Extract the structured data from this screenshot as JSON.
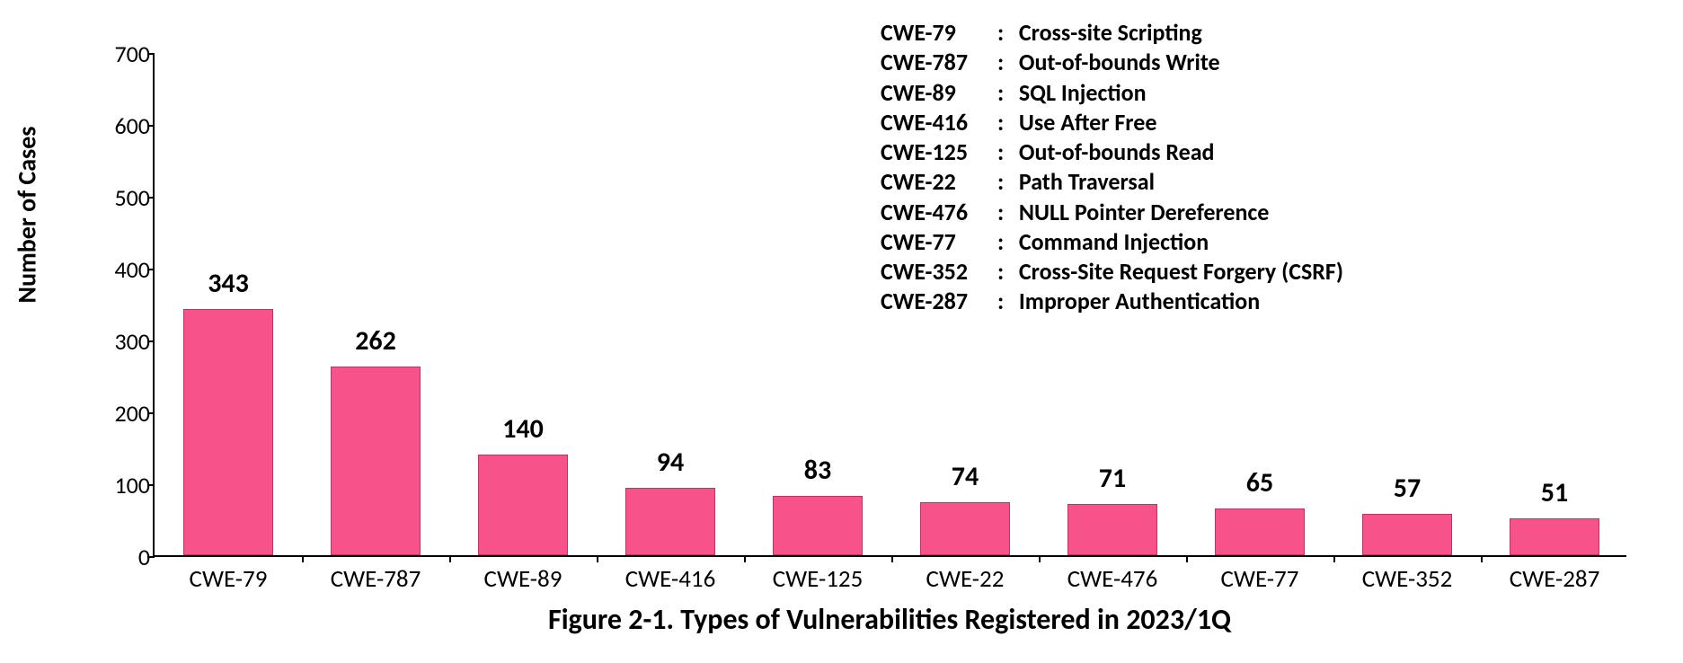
{
  "chart": {
    "type": "bar",
    "y_axis_label": "Number of Cases",
    "caption": "Figure 2-1. Types of Vulnerabilities Registered in 2023/1Q",
    "ylim": [
      0,
      700
    ],
    "ytick_step": 100,
    "yticks": [
      0,
      100,
      200,
      300,
      400,
      500,
      600,
      700
    ],
    "bar_fill_color": "#f7538a",
    "bar_border_color": "#c23066",
    "background_color": "#ffffff",
    "axis_color": "#000000",
    "label_fontsize": 28,
    "value_fontsize": 30,
    "tick_fontsize": 26,
    "caption_fontsize": 32,
    "bars": [
      {
        "category": "CWE-79",
        "value": 343
      },
      {
        "category": "CWE-787",
        "value": 262
      },
      {
        "category": "CWE-89",
        "value": 140
      },
      {
        "category": "CWE-416",
        "value": 94
      },
      {
        "category": "CWE-125",
        "value": 83
      },
      {
        "category": "CWE-22",
        "value": 74
      },
      {
        "category": "CWE-476",
        "value": 71
      },
      {
        "category": "CWE-77",
        "value": 65
      },
      {
        "category": "CWE-352",
        "value": 57
      },
      {
        "category": "CWE-287",
        "value": 51
      }
    ],
    "legend": [
      {
        "key": "CWE-79",
        "desc": "Cross-site Scripting"
      },
      {
        "key": "CWE-787",
        "desc": "Out-of-bounds Write"
      },
      {
        "key": "CWE-89",
        "desc": "SQL Injection"
      },
      {
        "key": "CWE-416",
        "desc": "Use After Free"
      },
      {
        "key": "CWE-125",
        "desc": "Out-of-bounds Read"
      },
      {
        "key": "CWE-22",
        "desc": "Path Traversal"
      },
      {
        "key": "CWE-476",
        "desc": "NULL Pointer Dereference"
      },
      {
        "key": "CWE-77",
        "desc": "Command Injection"
      },
      {
        "key": "CWE-352",
        "desc": "Cross-Site Request Forgery (CSRF)"
      },
      {
        "key": "CWE-287",
        "desc": "Improper Authentication"
      }
    ]
  }
}
